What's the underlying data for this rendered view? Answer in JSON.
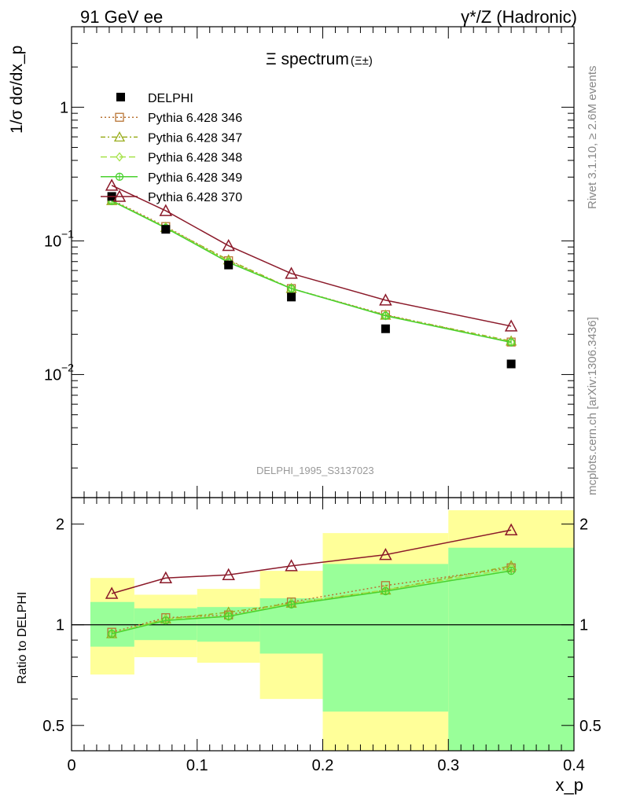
{
  "header": {
    "left": "91 GeV ee",
    "right": "γ*/Z (Hadronic)"
  },
  "side": {
    "rivet": "Rivet 3.1.10, ≥ 2.6M events",
    "mcplots": "mcplots.cern.ch [arXiv:1306.3436]"
  },
  "watermark": "DELPHI_1995_S3137023",
  "colors": {
    "data": "#000000",
    "c346": "#b87333",
    "c347": "#9aae1f",
    "c348": "#a6e34a",
    "c349": "#49d12e",
    "c370": "#8b1a2a",
    "band_inner": "#99ff99",
    "band_outer": "#ffff99"
  },
  "chart_data": [
    {
      "type": "scatter",
      "title": "Ξ spectrum",
      "title_suffix": "(Ξ±)",
      "ylabel": "1/σ dσ/dx_p",
      "yscale": "log",
      "ylim": [
        0.0012,
        4.0
      ],
      "xlim": [
        0,
        0.4
      ],
      "yticks": [
        {
          "v": 0.01,
          "base": "10",
          "exp": "−2"
        },
        {
          "v": 0.1,
          "base": "10",
          "exp": "−1"
        },
        {
          "v": 1,
          "base": "1",
          "exp": ""
        }
      ],
      "legend_position": "top-left",
      "data": {
        "name": "DELPHI",
        "x": [
          0.032,
          0.075,
          0.125,
          0.175,
          0.25,
          0.35
        ],
        "y": [
          0.215,
          0.122,
          0.066,
          0.038,
          0.022,
          0.012
        ]
      },
      "x": [
        0.032,
        0.075,
        0.125,
        0.175,
        0.25,
        0.35
      ],
      "series": [
        {
          "name": "Pythia 6.428 346",
          "values": [
            0.203,
            0.128,
            0.071,
            0.044,
            0.028,
            0.0175
          ],
          "color_key": "c346",
          "dash": "2,3",
          "marker": "square"
        },
        {
          "name": "Pythia 6.428 347",
          "values": [
            0.2,
            0.126,
            0.072,
            0.044,
            0.0278,
            0.0178
          ],
          "color_key": "c347",
          "dash": "6,3,2,3",
          "marker": "triangle"
        },
        {
          "name": "Pythia 6.428 348",
          "values": [
            0.2,
            0.126,
            0.07,
            0.044,
            0.0276,
            0.0175
          ],
          "color_key": "c348",
          "dash": "8,4",
          "marker": "diamond"
        },
        {
          "name": "Pythia 6.428 349",
          "values": [
            0.199,
            0.125,
            0.069,
            0.044,
            0.0275,
            0.0174
          ],
          "color_key": "c349",
          "dash": "",
          "marker": "circle"
        },
        {
          "name": "Pythia 6.428 370",
          "values": [
            0.26,
            0.168,
            0.092,
            0.057,
            0.036,
            0.023
          ],
          "color_key": "c370",
          "dash": "",
          "marker": "triangle-open"
        }
      ]
    },
    {
      "type": "line",
      "ylabel": "Ratio to DELPHI",
      "yscale": "log",
      "ylim": [
        0.42,
        2.4
      ],
      "yticks": [
        {
          "v": 0.5,
          "label": "0.5"
        },
        {
          "v": 1,
          "label": "1"
        },
        {
          "v": 2,
          "label": "2"
        }
      ],
      "xlim": [
        0,
        0.4
      ],
      "xticks": [
        {
          "v": 0,
          "label": "0"
        },
        {
          "v": 0.1,
          "label": "0.1"
        },
        {
          "v": 0.2,
          "label": "0.2"
        },
        {
          "v": 0.3,
          "label": "0.3"
        },
        {
          "v": 0.4,
          "label": "0.4"
        }
      ],
      "xlabel": "x_p",
      "bins": [
        {
          "x0": 0.015,
          "x1": 0.05,
          "in_lo": 0.86,
          "in_hi": 1.17,
          "out_lo": 0.71,
          "out_hi": 1.38
        },
        {
          "x0": 0.05,
          "x1": 0.1,
          "in_lo": 0.9,
          "in_hi": 1.12,
          "out_lo": 0.8,
          "out_hi": 1.23
        },
        {
          "x0": 0.1,
          "x1": 0.15,
          "in_lo": 0.89,
          "in_hi": 1.13,
          "out_lo": 0.77,
          "out_hi": 1.28
        },
        {
          "x0": 0.15,
          "x1": 0.2,
          "in_lo": 0.82,
          "in_hi": 1.2,
          "out_lo": 0.6,
          "out_hi": 1.45
        },
        {
          "x0": 0.2,
          "x1": 0.3,
          "in_lo": 0.55,
          "in_hi": 1.52,
          "out_lo": 0.42,
          "out_hi": 1.88
        },
        {
          "x0": 0.3,
          "x1": 0.4,
          "in_lo": 0.42,
          "in_hi": 1.7,
          "out_lo": 0.42,
          "out_hi": 2.2
        }
      ],
      "x": [
        0.032,
        0.075,
        0.125,
        0.175,
        0.25,
        0.35
      ],
      "series": [
        {
          "name": "Pythia 6.428 346",
          "values": [
            0.95,
            1.05,
            1.07,
            1.17,
            1.31,
            1.48
          ],
          "color_key": "c346",
          "dash": "2,3",
          "marker": "square"
        },
        {
          "name": "Pythia 6.428 347",
          "values": [
            0.94,
            1.04,
            1.09,
            1.16,
            1.27,
            1.5
          ],
          "color_key": "c347",
          "dash": "6,3,2,3",
          "marker": "triangle"
        },
        {
          "name": "Pythia 6.428 348",
          "values": [
            0.94,
            1.04,
            1.06,
            1.16,
            1.27,
            1.47
          ],
          "color_key": "c348",
          "dash": "8,4",
          "marker": "diamond"
        },
        {
          "name": "Pythia 6.428 349",
          "values": [
            0.94,
            1.03,
            1.06,
            1.15,
            1.26,
            1.45
          ],
          "color_key": "c349",
          "dash": "",
          "marker": "circle"
        },
        {
          "name": "Pythia 6.428 370",
          "values": [
            1.24,
            1.38,
            1.41,
            1.5,
            1.62,
            1.92
          ],
          "color_key": "c370",
          "dash": "",
          "marker": "triangle-open"
        }
      ]
    }
  ]
}
